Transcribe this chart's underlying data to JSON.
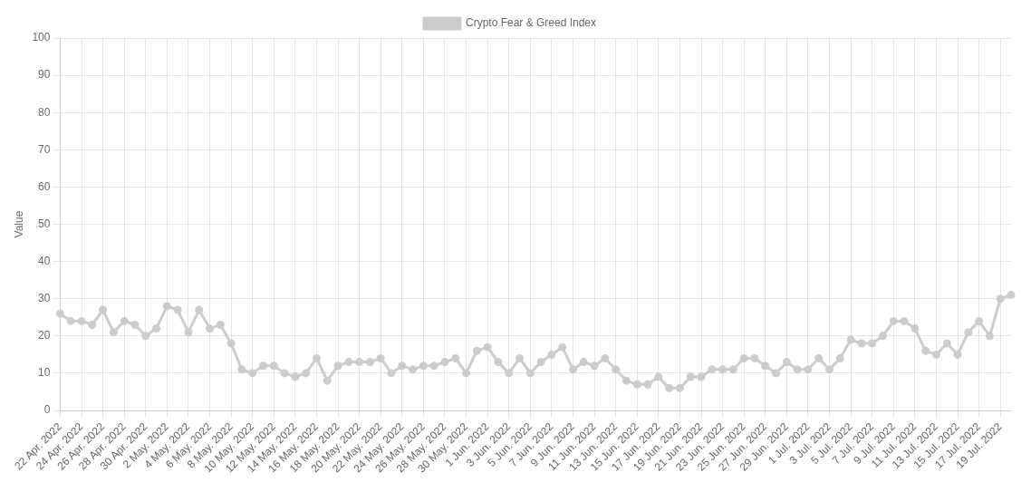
{
  "chart_data": {
    "type": "line",
    "ylabel": "Value",
    "legend": "top",
    "grid": true,
    "marker": "circle",
    "line_style": "solid",
    "categories": [
      "22 Apr. 2022",
      null,
      "24 Apr. 2022",
      null,
      "26 Apr. 2022",
      null,
      "28 Apr. 2022",
      null,
      "30 Apr. 2022",
      null,
      "2 May. 2022",
      null,
      "4 May. 2022",
      null,
      "6 May. 2022",
      null,
      "8 May. 2022",
      null,
      "10 May. 2022",
      null,
      "12 May. 2022",
      null,
      "14 May. 2022",
      null,
      "16 May. 2022",
      null,
      "18 May. 2022",
      null,
      "20 May. 2022",
      null,
      "22 May. 2022",
      null,
      "24 May. 2022",
      null,
      "26 May. 2022",
      null,
      "28 May. 2022",
      null,
      "30 May. 2022",
      null,
      "1 Jun. 2022",
      null,
      "3 Jun. 2022",
      null,
      "5 Jun. 2022",
      null,
      "7 Jun. 2022",
      null,
      "9 Jun. 2022",
      null,
      "11 Jun. 2022",
      null,
      "13 Jun. 2022",
      null,
      "15 Jun. 2022",
      null,
      "17 Jun. 2022",
      null,
      "19 Jun. 2022",
      null,
      "21 Jun. 2022",
      null,
      "23 Jun. 2022",
      null,
      "25 Jun. 2022",
      null,
      "27 Jun. 2022",
      null,
      "29 Jun. 2022",
      null,
      "1 Jul. 2022",
      null,
      "3 Jul. 2022",
      null,
      "5 Jul. 2022",
      null,
      "7 Jul. 2022",
      null,
      "9 Jul. 2022",
      null,
      "11 Jul. 2022",
      null,
      "13 Jul. 2022",
      null,
      "15 Jul. 2022",
      null,
      "17 Jul. 2022",
      null,
      "19 Jul. 2022",
      null
    ],
    "ylim": [
      0,
      100
    ],
    "yticks": [
      0,
      10,
      20,
      30,
      40,
      50,
      60,
      70,
      80,
      90,
      100
    ],
    "series": [
      {
        "name": "Crypto Fear & Greed Index",
        "color": "#cccccc",
        "values": [
          26,
          24,
          24,
          23,
          27,
          21,
          24,
          23,
          20,
          22,
          28,
          27,
          21,
          27,
          22,
          23,
          18,
          11,
          10,
          12,
          12,
          10,
          9,
          10,
          14,
          8,
          12,
          13,
          13,
          13,
          14,
          10,
          12,
          11,
          12,
          12,
          13,
          14,
          10,
          16,
          17,
          13,
          10,
          14,
          10,
          13,
          15,
          17,
          11,
          13,
          12,
          14,
          11,
          8,
          7,
          7,
          9,
          6,
          6,
          9,
          9,
          11,
          11,
          11,
          14,
          14,
          12,
          10,
          13,
          11,
          11,
          14,
          11,
          14,
          19,
          18,
          18,
          20,
          24,
          24,
          22,
          16,
          15,
          18,
          15,
          21,
          24,
          20,
          30,
          31
        ]
      }
    ]
  }
}
